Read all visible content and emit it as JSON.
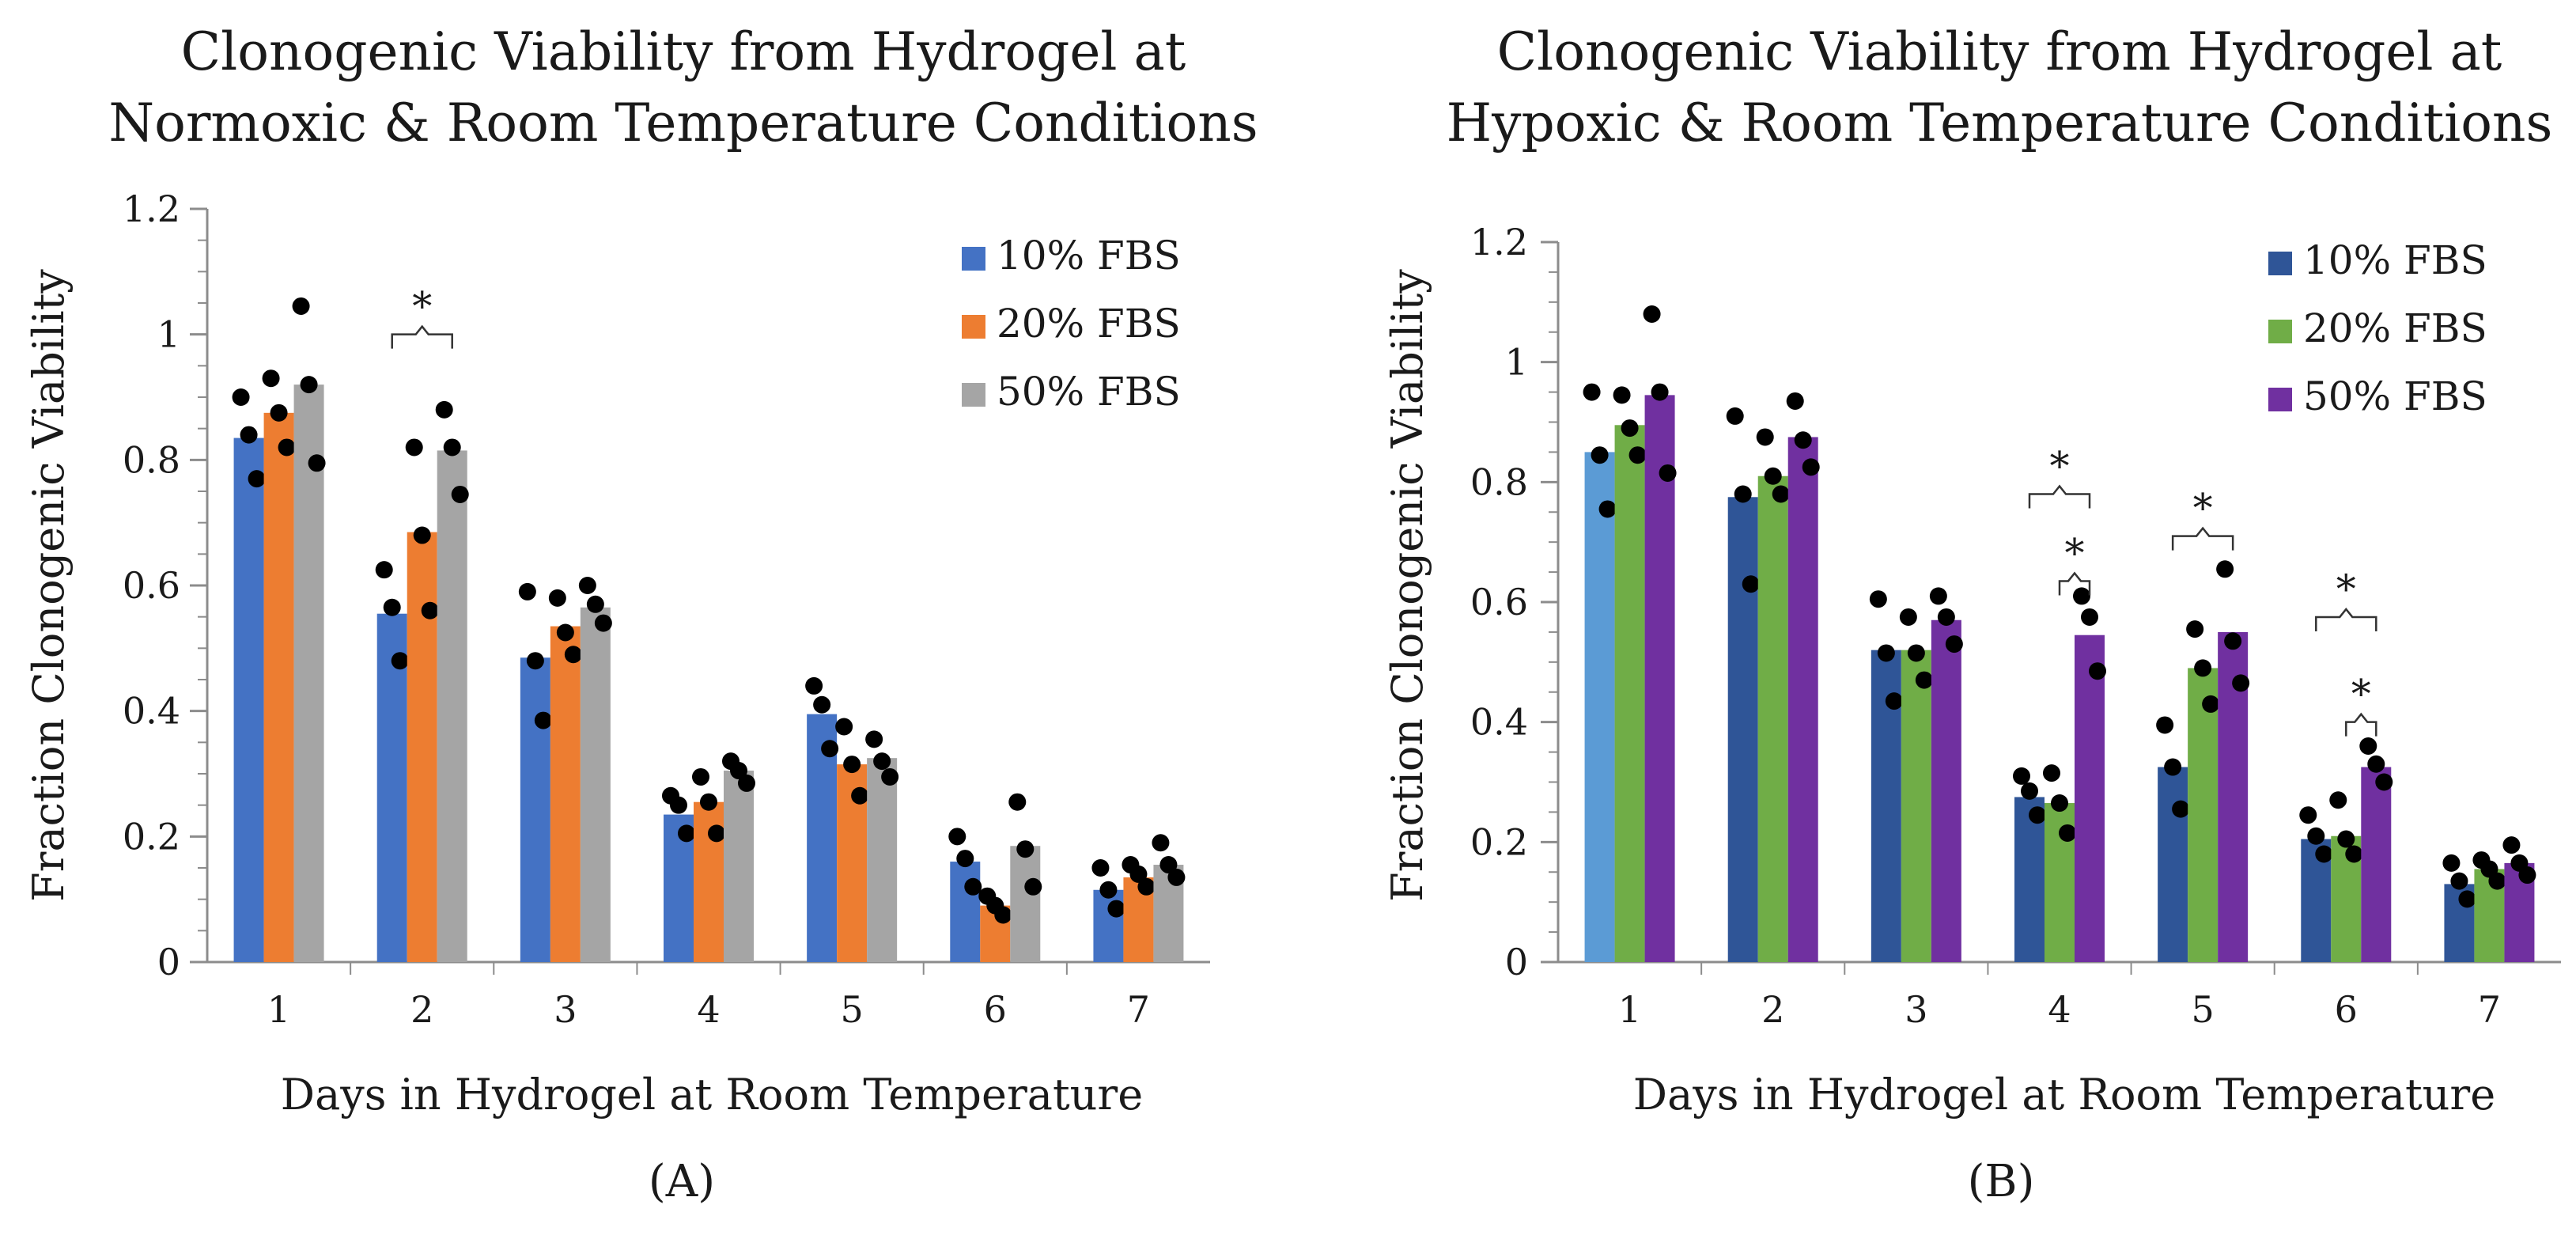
{
  "chart_data": [
    {
      "type": "bar",
      "panel_label": "(A)",
      "title_lines": [
        "Clonogenic Viability from Hydrogel at",
        "Normoxic & Room Temperature Conditions"
      ],
      "xlabel": "Days in Hydrogel at Room Temperature",
      "ylabel": "Fraction Clonogenic Viability",
      "ylim": [
        0,
        1.2
      ],
      "yticks": [
        "0",
        "0.2",
        "0.4",
        "0.6",
        "0.8",
        "1",
        "1.2"
      ],
      "categories": [
        "1",
        "2",
        "3",
        "4",
        "5",
        "6",
        "7"
      ],
      "legend_position": "top-right",
      "series": [
        {
          "name": "10% FBS",
          "color": "#4472C4",
          "values": [
            0.835,
            0.555,
            0.485,
            0.235,
            0.395,
            0.16,
            0.115
          ],
          "points": [
            [
              0.9,
              0.84,
              0.77
            ],
            [
              0.625,
              0.565,
              0.48
            ],
            [
              0.59,
              0.48,
              0.385
            ],
            [
              0.265,
              0.25,
              0.205
            ],
            [
              0.44,
              0.41,
              0.34
            ],
            [
              0.2,
              0.165,
              0.12
            ],
            [
              0.15,
              0.115,
              0.085
            ]
          ]
        },
        {
          "name": "20% FBS",
          "color": "#ED7D31",
          "values": [
            0.875,
            0.685,
            0.535,
            0.255,
            0.315,
            0.09,
            0.135
          ],
          "points": [
            [
              0.93,
              0.875,
              0.82
            ],
            [
              0.82,
              0.68,
              0.56
            ],
            [
              0.58,
              0.525,
              0.49
            ],
            [
              0.295,
              0.255,
              0.205
            ],
            [
              0.375,
              0.315,
              0.265
            ],
            [
              0.105,
              0.09,
              0.075
            ],
            [
              0.155,
              0.14,
              0.12
            ]
          ]
        },
        {
          "name": "50% FBS",
          "color": "#A5A5A5",
          "values": [
            0.92,
            0.815,
            0.565,
            0.305,
            0.325,
            0.185,
            0.155
          ],
          "points": [
            [
              1.045,
              0.92,
              0.795
            ],
            [
              0.88,
              0.82,
              0.745
            ],
            [
              0.6,
              0.57,
              0.54
            ],
            [
              0.32,
              0.305,
              0.285
            ],
            [
              0.355,
              0.32,
              0.295
            ],
            [
              0.255,
              0.18,
              0.12
            ],
            [
              0.19,
              0.155,
              0.135
            ]
          ]
        }
      ],
      "significance": [
        {
          "label": "*",
          "category_index": 1,
          "from_series": 0,
          "to_series": 2,
          "level": 1.0
        }
      ]
    },
    {
      "type": "bar",
      "panel_label": "(B)",
      "title_lines": [
        "Clonogenic Viability from Hydrogel at",
        "Hypoxic & Room Temperature Conditions"
      ],
      "xlabel": "Days in Hydrogel at Room Temperature",
      "ylabel": "Fraction Clonogenic Viability",
      "ylim": [
        0,
        1.2
      ],
      "yticks": [
        "0",
        "0.2",
        "0.4",
        "0.6",
        "0.8",
        "1",
        "1.2"
      ],
      "categories": [
        "1",
        "2",
        "3",
        "4",
        "5",
        "6",
        "7"
      ],
      "legend_position": "top-right",
      "series": [
        {
          "name": "10% FBS",
          "color": "#2F5597",
          "first_bar_color": "#5B9BD5",
          "values": [
            0.85,
            0.775,
            0.52,
            0.275,
            0.325,
            0.205,
            0.13
          ],
          "points": [
            [
              0.95,
              0.845,
              0.755
            ],
            [
              0.91,
              0.78,
              0.63
            ],
            [
              0.605,
              0.515,
              0.435
            ],
            [
              0.31,
              0.285,
              0.245
            ],
            [
              0.395,
              0.325,
              0.255
            ],
            [
              0.245,
              0.21,
              0.18
            ],
            [
              0.165,
              0.135,
              0.105
            ]
          ]
        },
        {
          "name": "20% FBS",
          "color": "#70AD47",
          "values": [
            0.895,
            0.81,
            0.52,
            0.265,
            0.49,
            0.21,
            0.155
          ],
          "points": [
            [
              0.945,
              0.89,
              0.845
            ],
            [
              0.875,
              0.81,
              0.78
            ],
            [
              0.575,
              0.515,
              0.47
            ],
            [
              0.315,
              0.265,
              0.215
            ],
            [
              0.555,
              0.49,
              0.43
            ],
            [
              0.27,
              0.205,
              0.18
            ],
            [
              0.17,
              0.155,
              0.135
            ]
          ]
        },
        {
          "name": "50% FBS",
          "color": "#7030A0",
          "values": [
            0.945,
            0.875,
            0.57,
            0.545,
            0.55,
            0.325,
            0.165
          ],
          "points": [
            [
              1.08,
              0.95,
              0.815
            ],
            [
              0.935,
              0.87,
              0.825
            ],
            [
              0.61,
              0.575,
              0.53
            ],
            [
              0.61,
              0.575,
              0.485
            ],
            [
              0.655,
              0.535,
              0.465
            ],
            [
              0.36,
              0.33,
              0.3
            ],
            [
              0.195,
              0.165,
              0.145
            ]
          ]
        }
      ],
      "significance": [
        {
          "label": "*",
          "category_index": 3,
          "from_series": 0,
          "to_series": 2,
          "level": 0.78
        },
        {
          "label": "*",
          "category_index": 3,
          "from_series": 1,
          "to_series": 2,
          "level": 0.635
        },
        {
          "label": "*",
          "category_index": 4,
          "from_series": 0,
          "to_series": 2,
          "level": 0.71
        },
        {
          "label": "*",
          "category_index": 5,
          "from_series": 0,
          "to_series": 2,
          "level": 0.575
        },
        {
          "label": "*",
          "category_index": 5,
          "from_series": 1,
          "to_series": 2,
          "level": 0.4
        }
      ]
    }
  ]
}
